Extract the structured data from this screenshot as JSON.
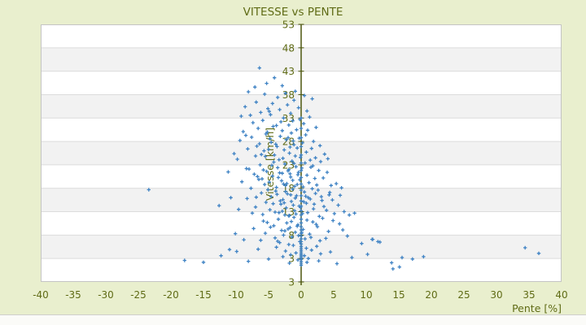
{
  "chart_data": {
    "type": "scatter",
    "title": "VITESSE vs PENTE",
    "x_axis": {
      "title": "Pente [%]",
      "range": [
        -40,
        40
      ],
      "ticks": [
        -40,
        -35,
        -30,
        -25,
        -20,
        -15,
        -10,
        -5,
        0,
        5,
        10,
        15,
        20,
        25,
        30,
        35,
        40
      ]
    },
    "y_axis": {
      "title": "Vitesse [km/h]",
      "range": [
        -2,
        53
      ],
      "ticks": [
        53,
        48,
        43,
        38,
        33,
        28,
        23,
        18,
        13,
        8,
        3
      ],
      "edge_label": "3"
    },
    "legend": "none",
    "grid": "horizontal-bands",
    "marker": "plus-cross",
    "colors": {
      "background": "#e9efce",
      "band_main": "#ffffff",
      "band_alt": "#f2f2f2",
      "gridline": "#dcdcdc",
      "plot_border": "#c4c4c4",
      "axis_line": "#4d570e",
      "text": "#5f6b15",
      "point": "#3e82c4",
      "footer_strip": "#fbfbf8",
      "footer_line": "#cfcfcc"
    },
    "points": [
      [
        0,
        1.6
      ],
      [
        0,
        2.0
      ],
      [
        0,
        2.4
      ],
      [
        0,
        2.8
      ],
      [
        0,
        3.1
      ],
      [
        0,
        3.4
      ],
      [
        0,
        3.7
      ],
      [
        0,
        4.0
      ],
      [
        0,
        4.4
      ],
      [
        0,
        4.8
      ],
      [
        0,
        5.2
      ],
      [
        0,
        5.6
      ],
      [
        0,
        6.1
      ],
      [
        0,
        6.6
      ],
      [
        0,
        7.2
      ],
      [
        0,
        7.8
      ],
      [
        0,
        8.4
      ],
      [
        0,
        9.1
      ],
      [
        0,
        9.8
      ],
      [
        0,
        10.6
      ],
      [
        0,
        11.4
      ],
      [
        0,
        12.3
      ],
      [
        0,
        13.2
      ],
      [
        0,
        14.2
      ],
      [
        0,
        15.3
      ],
      [
        0,
        16.4
      ],
      [
        0,
        17.6
      ],
      [
        0,
        18.9
      ],
      [
        0,
        20.3
      ],
      [
        0,
        21.8
      ],
      [
        0,
        23.4
      ],
      [
        0,
        25.1
      ],
      [
        0,
        26.9
      ],
      [
        0,
        28.8
      ],
      [
        0,
        30.8
      ],
      [
        0,
        33.0
      ],
      [
        -6.4,
        43.7
      ],
      [
        -4.1,
        41.6
      ],
      [
        -5.3,
        40.4
      ],
      [
        -2.9,
        39.9
      ],
      [
        -7.1,
        39.6
      ],
      [
        -0.9,
        38.7
      ],
      [
        -8.1,
        38.6
      ],
      [
        -2.4,
        38.3
      ],
      [
        -5.6,
        38.1
      ],
      [
        0.5,
        37.8
      ],
      [
        -3.6,
        37.4
      ],
      [
        1.7,
        37.1
      ],
      [
        -1.1,
        36.8
      ],
      [
        -6.9,
        36.4
      ],
      [
        -4.4,
        36.1
      ],
      [
        -2.1,
        35.8
      ],
      [
        -8.6,
        35.4
      ],
      [
        -0.4,
        35.2
      ],
      [
        -5.1,
        35.0
      ],
      [
        -3.3,
        34.8
      ],
      [
        0.9,
        34.5
      ],
      [
        -6.2,
        34.2
      ],
      [
        -1.6,
        34.0
      ],
      [
        -4.7,
        33.7
      ],
      [
        -9.2,
        33.4
      ],
      [
        1.3,
        33.2
      ],
      [
        -2.7,
        33.0
      ],
      [
        -0.2,
        32.7
      ],
      [
        -5.9,
        32.5
      ],
      [
        -3.1,
        32.2
      ],
      [
        -7.4,
        32.0
      ],
      [
        0.4,
        31.8
      ],
      [
        -1.9,
        31.5
      ],
      [
        -4.3,
        31.2
      ],
      [
        2.3,
        31.0
      ],
      [
        -6.6,
        30.8
      ],
      [
        -0.7,
        30.5
      ],
      [
        -2.9,
        30.3
      ],
      [
        -8.9,
        30.1
      ],
      [
        -5.2,
        30.0
      ],
      [
        1.0,
        30.4
      ],
      [
        -3.8,
        31.4
      ],
      [
        -1.3,
        32.4
      ],
      [
        -7.8,
        33.6
      ],
      [
        -4.9,
        34.4
      ],
      [
        -1.5,
        29.8
      ],
      [
        -5.4,
        29.6
      ],
      [
        0.7,
        29.4
      ],
      [
        -3.2,
        29.1
      ],
      [
        -7.6,
        28.9
      ],
      [
        -0.3,
        28.7
      ],
      [
        -2.3,
        28.4
      ],
      [
        -9.4,
        28.2
      ],
      [
        1.9,
        28.0
      ],
      [
        -4.6,
        27.8
      ],
      [
        -6.4,
        27.5
      ],
      [
        -1.1,
        27.3
      ],
      [
        2.9,
        27.1
      ],
      [
        -3.7,
        26.9
      ],
      [
        -0.6,
        26.6
      ],
      [
        -8.2,
        26.4
      ],
      [
        -2.6,
        26.2
      ],
      [
        -5.7,
        26.0
      ],
      [
        0.8,
        25.7
      ],
      [
        -1.8,
        25.5
      ],
      [
        3.6,
        25.3
      ],
      [
        -4.1,
        25.1
      ],
      [
        -7.0,
        24.9
      ],
      [
        -0.1,
        24.6
      ],
      [
        -2.8,
        24.4
      ],
      [
        -9.8,
        24.2
      ],
      [
        1.4,
        24.0
      ],
      [
        -5.5,
        24.8
      ],
      [
        -3.4,
        24.1
      ],
      [
        -6.8,
        27.0
      ],
      [
        -1.7,
        26.8
      ],
      [
        0.2,
        27.7
      ],
      [
        -10.3,
        25.4
      ],
      [
        2.2,
        24.5
      ],
      [
        -4.8,
        28.6
      ],
      [
        -0.9,
        24.9
      ],
      [
        -2.0,
        28.8
      ],
      [
        -6.1,
        25.2
      ],
      [
        1.6,
        26.5
      ],
      [
        -3.9,
        27.4
      ],
      [
        -8.5,
        29.3
      ],
      [
        -1.2,
        28.1
      ],
      [
        4.1,
        24.3
      ],
      [
        -5.0,
        26.3
      ],
      [
        -1.4,
        23.8
      ],
      [
        -4.2,
        23.6
      ],
      [
        0.6,
        23.4
      ],
      [
        -2.5,
        23.2
      ],
      [
        -6.3,
        23.0
      ],
      [
        1.8,
        22.8
      ],
      [
        -0.8,
        22.6
      ],
      [
        -3.6,
        22.4
      ],
      [
        -8.4,
        22.2
      ],
      [
        -1.9,
        22.0
      ],
      [
        2.7,
        21.8
      ],
      [
        -5.3,
        21.6
      ],
      [
        -0.4,
        21.4
      ],
      [
        -2.9,
        21.2
      ],
      [
        -7.2,
        21.0
      ],
      [
        0.9,
        20.8
      ],
      [
        -4.4,
        20.6
      ],
      [
        -1.6,
        20.4
      ],
      [
        3.4,
        20.2
      ],
      [
        -6.0,
        20.0
      ],
      [
        -0.2,
        19.8
      ],
      [
        -3.0,
        19.6
      ],
      [
        -9.1,
        19.4
      ],
      [
        1.2,
        19.2
      ],
      [
        -2.2,
        19.0
      ],
      [
        -5.6,
        18.8
      ],
      [
        4.6,
        18.6
      ],
      [
        -1.0,
        18.4
      ],
      [
        -3.8,
        18.2
      ],
      [
        -7.7,
        18.0
      ],
      [
        0.3,
        18.3
      ],
      [
        -2.4,
        18.6
      ],
      [
        5.4,
        19.0
      ],
      [
        -4.9,
        19.3
      ],
      [
        -1.3,
        19.7
      ],
      [
        2.1,
        20.1
      ],
      [
        -6.7,
        20.5
      ],
      [
        -0.5,
        20.9
      ],
      [
        -3.3,
        21.3
      ],
      [
        6.2,
        18.1
      ],
      [
        -2.0,
        21.7
      ],
      [
        -8.0,
        22.1
      ],
      [
        1.5,
        22.5
      ],
      [
        -4.5,
        22.9
      ],
      [
        -1.1,
        23.3
      ],
      [
        -11.2,
        21.5
      ],
      [
        3.0,
        23.7
      ],
      [
        -2.7,
        18.9
      ],
      [
        -5.8,
        21.9
      ],
      [
        0.1,
        22.3
      ],
      [
        -3.5,
        20.3
      ],
      [
        2.4,
        18.7
      ],
      [
        -1.7,
        21.1
      ],
      [
        -6.5,
        19.9
      ],
      [
        -0.6,
        18.8
      ],
      [
        4.0,
        21.4
      ],
      [
        -1.3,
        17.8
      ],
      [
        2.6,
        17.6
      ],
      [
        -3.9,
        17.4
      ],
      [
        0.5,
        17.2
      ],
      [
        -6.1,
        17.0
      ],
      [
        -2.1,
        16.8
      ],
      [
        4.3,
        16.6
      ],
      [
        -0.7,
        16.4
      ],
      [
        -4.6,
        16.2
      ],
      [
        1.1,
        16.0
      ],
      [
        -8.3,
        15.8
      ],
      [
        -2.8,
        15.6
      ],
      [
        3.2,
        15.4
      ],
      [
        -1.5,
        15.2
      ],
      [
        -5.4,
        15.0
      ],
      [
        0.8,
        14.8
      ],
      [
        -3.1,
        14.6
      ],
      [
        5.7,
        14.4
      ],
      [
        -0.3,
        14.2
      ],
      [
        -7.0,
        14.0
      ],
      [
        -2.3,
        13.8
      ],
      [
        1.9,
        13.6
      ],
      [
        -4.8,
        13.4
      ],
      [
        -1.0,
        13.2
      ],
      [
        6.6,
        13.0
      ],
      [
        -3.4,
        12.8
      ],
      [
        0.2,
        12.6
      ],
      [
        -5.9,
        12.4
      ],
      [
        -1.8,
        12.2
      ],
      [
        2.8,
        12.0
      ],
      [
        -9.6,
        13.5
      ],
      [
        -0.9,
        15.9
      ],
      [
        3.9,
        13.3
      ],
      [
        -2.6,
        14.9
      ],
      [
        1.4,
        15.7
      ],
      [
        -4.0,
        12.9
      ],
      [
        7.4,
        12.3
      ],
      [
        -1.2,
        14.4
      ],
      [
        2.2,
        16.9
      ],
      [
        -6.9,
        16.1
      ],
      [
        -0.1,
        13.9
      ],
      [
        4.8,
        15.5
      ],
      [
        -3.7,
        16.7
      ],
      [
        1.0,
        12.8
      ],
      [
        -2.4,
        17.3
      ],
      [
        -12.6,
        14.3
      ],
      [
        5.1,
        12.6
      ],
      [
        -1.6,
        16.6
      ],
      [
        3.5,
        14.1
      ],
      [
        -5.1,
        17.7
      ],
      [
        0.7,
        16.3
      ],
      [
        -2.9,
        13.1
      ],
      [
        8.2,
        12.7
      ],
      [
        -0.8,
        12.5
      ],
      [
        2.0,
        14.6
      ],
      [
        -4.3,
        14.7
      ],
      [
        1.7,
        17.9
      ],
      [
        -7.5,
        12.7
      ],
      [
        3.1,
        16.2
      ],
      [
        -1.9,
        12.1
      ],
      [
        6.0,
        16.5
      ],
      [
        -3.2,
        15.3
      ],
      [
        0.4,
        15.1
      ],
      [
        -2.5,
        12.3
      ],
      [
        4.4,
        17.1
      ],
      [
        -10.8,
        16.0
      ],
      [
        -1.1,
        11.8
      ],
      [
        3.3,
        11.6
      ],
      [
        -3.5,
        11.4
      ],
      [
        0.9,
        11.2
      ],
      [
        -5.8,
        11.0
      ],
      [
        1.8,
        10.8
      ],
      [
        -2.2,
        10.6
      ],
      [
        5.9,
        10.4
      ],
      [
        -0.5,
        10.2
      ],
      [
        -4.2,
        10.0
      ],
      [
        2.5,
        9.8
      ],
      [
        -1.7,
        9.6
      ],
      [
        -7.3,
        9.4
      ],
      [
        0.3,
        9.2
      ],
      [
        -3.0,
        9.0
      ],
      [
        4.2,
        8.8
      ],
      [
        -0.9,
        8.6
      ],
      [
        -5.5,
        8.4
      ],
      [
        1.3,
        8.2
      ],
      [
        -2.7,
        8.0
      ],
      [
        7.1,
        7.8
      ],
      [
        -1.4,
        7.6
      ],
      [
        -4.0,
        7.4
      ],
      [
        0.6,
        7.2
      ],
      [
        -8.8,
        7.0
      ],
      [
        2.9,
        6.8
      ],
      [
        -0.2,
        6.6
      ],
      [
        -3.3,
        6.4
      ],
      [
        9.3,
        6.2
      ],
      [
        -1.9,
        6.0
      ],
      [
        -6.2,
        6.9
      ],
      [
        1.5,
        7.5
      ],
      [
        -2.5,
        8.9
      ],
      [
        10.9,
        7.1
      ],
      [
        -0.6,
        9.9
      ],
      [
        3.8,
        7.3
      ],
      [
        -4.7,
        9.7
      ],
      [
        0.1,
        8.5
      ],
      [
        -1.5,
        10.9
      ],
      [
        6.4,
        9.1
      ],
      [
        -3.6,
        6.7
      ],
      [
        2.3,
        10.3
      ],
      [
        -10.1,
        8.3
      ],
      [
        -0.4,
        7.9
      ],
      [
        4.9,
        11.1
      ],
      [
        -2.0,
        9.3
      ],
      [
        12.1,
        6.5
      ],
      [
        -5.2,
        10.7
      ],
      [
        -1.2,
        5.8
      ],
      [
        2.4,
        5.6
      ],
      [
        -3.8,
        5.4
      ],
      [
        0.8,
        5.2
      ],
      [
        34.4,
        5.3
      ],
      [
        -6.6,
        5.0
      ],
      [
        1.6,
        4.8
      ],
      [
        -2.4,
        4.6
      ],
      [
        4.5,
        4.4
      ],
      [
        -0.8,
        4.2
      ],
      [
        36.5,
        4.1
      ],
      [
        -9.9,
        4.5
      ],
      [
        3.0,
        4.0
      ],
      [
        -1.6,
        3.8
      ],
      [
        -12.3,
        3.6
      ],
      [
        0.5,
        3.6
      ],
      [
        18.8,
        3.4
      ],
      [
        -2.8,
        3.4
      ],
      [
        7.8,
        3.2
      ],
      [
        15.5,
        3.2
      ],
      [
        -17.9,
        2.6
      ],
      [
        1.1,
        3.0
      ],
      [
        -5.0,
        2.9
      ],
      [
        17.1,
        2.9
      ],
      [
        -0.5,
        2.7
      ],
      [
        2.7,
        2.5
      ],
      [
        -8.1,
        2.4
      ],
      [
        0.9,
        2.2
      ],
      [
        -1.8,
        2.0
      ],
      [
        13.9,
        2.1
      ],
      [
        5.5,
        1.9
      ],
      [
        -11.0,
        4.9
      ],
      [
        -15.0,
        2.2
      ],
      [
        14.1,
        0.8
      ],
      [
        15.1,
        1.2
      ],
      [
        10.2,
        3.9
      ],
      [
        11.0,
        7.1
      ],
      [
        11.8,
        6.6
      ],
      [
        -23.4,
        17.7
      ]
    ]
  }
}
